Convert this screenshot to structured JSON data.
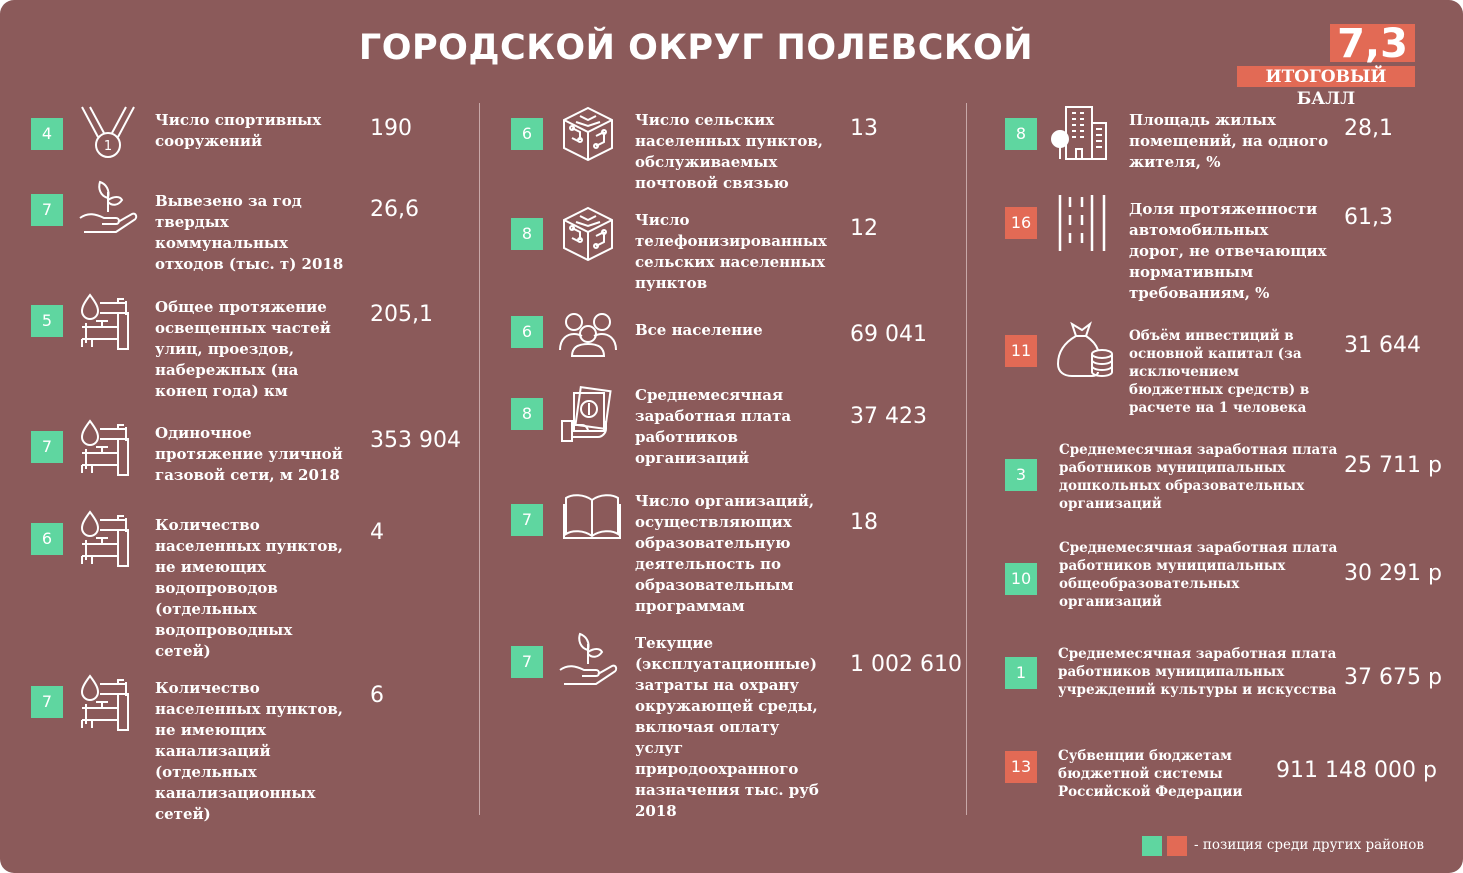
{
  "title": "ГОРОДСКОЙ ОКРУГ ПОЛЕВСКОЙ",
  "score": {
    "value": "7,3",
    "label": "ИТОГОВЫЙ БАЛЛ"
  },
  "colors": {
    "background": "#8b5a5a",
    "green": "#5fd6a0",
    "red": "#e26a55"
  },
  "columns": [
    {
      "rows": [
        {
          "rank": "4",
          "rank_color": "green",
          "icon": "medal-icon",
          "label_lines": [
            "Число спортивных",
            "сооружений"
          ],
          "value": "190"
        },
        {
          "rank": "7",
          "rank_color": "green",
          "icon": "sprout-hand-icon",
          "label_lines": [
            "Вывезено за год",
            "твердых",
            "коммунальных",
            "отходов (тыс. т) 2018"
          ],
          "value": "26,6"
        },
        {
          "rank": "5",
          "rank_color": "green",
          "icon": "pipeline-icon",
          "label_lines": [
            "Общее протяжение",
            "освещенных частей",
            "улиц, проездов,",
            "набережных (на",
            "конец года) км"
          ],
          "value": "205,1"
        },
        {
          "rank": "7",
          "rank_color": "green",
          "icon": "pipeline-icon",
          "label_lines": [
            "Одиночное",
            "протяжение уличной",
            "газовой сети, м 2018"
          ],
          "value": "353 904"
        },
        {
          "rank": "6",
          "rank_color": "green",
          "icon": "pipeline-icon",
          "label_lines": [
            "Количество",
            "населенных пунктов,",
            "не имеющих",
            "водопроводов",
            "(отдельных",
            "водопроводных",
            "сетей)"
          ],
          "value": "4"
        },
        {
          "rank": "7",
          "rank_color": "green",
          "icon": "pipeline-icon",
          "label_lines": [
            "Количество",
            "населенных пунктов,",
            "не имеющих",
            "канализаций",
            "(отдельных",
            "канализационных",
            "сетей)"
          ],
          "value": "6"
        }
      ]
    },
    {
      "rows": [
        {
          "rank": "6",
          "rank_color": "green",
          "icon": "network-cube-icon",
          "label_lines": [
            "Число сельских",
            "населенных пунктов,",
            "обслуживаемых",
            "почтовой связью"
          ],
          "value": "13"
        },
        {
          "rank": "8",
          "rank_color": "green",
          "icon": "network-cube-icon",
          "label_lines": [
            "Число",
            "телефонизированных",
            "сельских населенных",
            "пунктов"
          ],
          "value": "12"
        },
        {
          "rank": "6",
          "rank_color": "green",
          "icon": "people-group-icon",
          "label_lines": [
            "Все население"
          ],
          "value": "69 041"
        },
        {
          "rank": "8",
          "rank_color": "green",
          "icon": "salary-hand-icon",
          "label_lines": [
            "Среднемесячная",
            "заработная плата",
            "работников",
            "организаций"
          ],
          "value": "37 423"
        },
        {
          "rank": "7",
          "rank_color": "green",
          "icon": "open-book-icon",
          "label_lines": [
            "Число организаций,",
            "осуществляющих",
            "образовательную",
            "деятельность по",
            "образовательным",
            "программам"
          ],
          "value": "18"
        },
        {
          "rank": "7",
          "rank_color": "green",
          "icon": "sprout-hand-icon",
          "label_lines": [
            "Текущие",
            "(эксплуатационные)",
            "затраты на охрану",
            "окружающей среды,",
            "включая оплату",
            "услуг",
            "природоохранного",
            "назначения тыс. руб",
            "2018"
          ],
          "value": "1 002 610"
        }
      ]
    },
    {
      "rows": [
        {
          "rank": "8",
          "rank_color": "green",
          "icon": "buildings-icon",
          "label_lines": [
            "Площадь жилых",
            "помещений, на одного",
            "жителя, %"
          ],
          "value": "28,1"
        },
        {
          "rank": "16",
          "rank_color": "red",
          "icon": "road-icon",
          "label_lines": [
            "Доля протяженности",
            "автомобильных",
            "дорог, не отвечающих",
            "нормативным",
            "требованиям, %"
          ],
          "value": "61,3"
        },
        {
          "rank": "11",
          "rank_color": "red",
          "icon": "money-bag-icon",
          "label_lines": [
            "Объём инвестиций в",
            "основной капитал (за",
            "исключением",
            "бюджетных средств) в",
            "расчете на 1 человека"
          ],
          "value": "31 644"
        },
        {
          "rank": "3",
          "rank_color": "green",
          "icon": "",
          "label_lines": [
            "Среднемесячная заработная плата",
            "работников муниципальных",
            "дошкольных образовательных",
            "организаций"
          ],
          "value": "25 711 р"
        },
        {
          "rank": "10",
          "rank_color": "green",
          "icon": "",
          "label_lines": [
            "Среднемесячная заработная плата",
            "работников муниципальных",
            "общеобразовательных",
            "организаций"
          ],
          "value": "30 291 р"
        },
        {
          "rank": "1",
          "rank_color": "green",
          "icon": "",
          "label_lines": [
            "Среднемесячная заработная плата",
            "работников муниципальных",
            "учреждений культуры и искусства"
          ],
          "value": "37 675 р"
        },
        {
          "rank": "13",
          "rank_color": "red",
          "icon": "",
          "label_lines": [
            "Субвенции бюджетам",
            "бюджетной системы",
            "Российской Федерации"
          ],
          "value": "911 148 000 р"
        }
      ]
    }
  ],
  "legend": {
    "text": "- позиция среди других районов"
  }
}
